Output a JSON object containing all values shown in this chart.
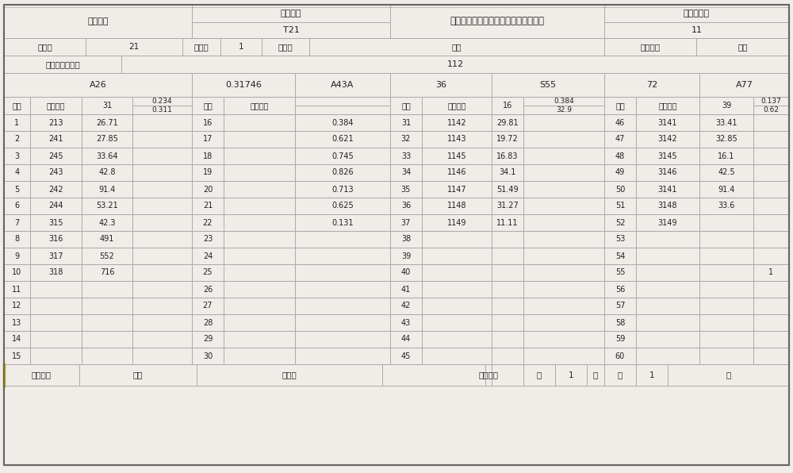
{
  "bg_color": "#f0ede8",
  "line_color": "#aaaaaa",
  "dark_line": "#666666",
  "text_color": "#222222",
  "title": "机械加工过程质量控制记录卡（表一）",
  "label_ceshijiange": "测试表格",
  "label_renwubianhao": "任务编号",
  "label_T21": "T21",
  "label_zhikongka": "质控卡编号",
  "label_11": "11",
  "label_xinghaol": "型号：",
  "label_21": "21",
  "label_tuhao": "图号：",
  "label_1": "1",
  "label_mingcheng": "名称：",
  "label_huakuai": "滑块",
  "label_celiangrenl": "测量人：",
  "label_dusa": "杜萨",
  "label_beice": "被测零件编号：",
  "label_112": "112",
  "grp_A26": "A26",
  "grp_031746": "0.31746",
  "grp_A43A": "A43A",
  "grp_36": "36",
  "grp_S55": "S55",
  "grp_72": "72",
  "grp_A77": "A77",
  "sh_xuhao": "序号",
  "sh_pinpian": "产品编号",
  "sh_31": "31",
  "sh_0234": "0.234",
  "sh_0311": "0.311",
  "sh_16": "16",
  "sh_0384": "0.384",
  "sh_329": "32.9",
  "sh_39": "39",
  "sh_0137": "0.137",
  "sh_062": "0.62",
  "data_rows": [
    [
      1,
      213,
      "26.71",
      "",
      16,
      "",
      "0.384",
      31,
      1142,
      "29.81",
      "",
      46,
      3141,
      "33.41",
      ""
    ],
    [
      2,
      241,
      "27.85",
      "",
      17,
      "",
      "0.621",
      32,
      1143,
      "19.72",
      "",
      47,
      3142,
      "32.85",
      ""
    ],
    [
      3,
      245,
      "33.64",
      "",
      18,
      "",
      "0.745",
      33,
      1145,
      "16.83",
      "",
      48,
      3145,
      "16.1",
      ""
    ],
    [
      4,
      243,
      "42.8",
      "",
      19,
      "",
      "0.826",
      34,
      1146,
      "34.1",
      "",
      49,
      3146,
      "42.5",
      ""
    ],
    [
      5,
      242,
      "91.4",
      "",
      20,
      "",
      "0.713",
      35,
      1147,
      "51.49",
      "",
      50,
      3141,
      "91.4",
      ""
    ],
    [
      6,
      244,
      "53.21",
      "",
      21,
      "",
      "0.625",
      36,
      1148,
      "31.27",
      "",
      51,
      3148,
      "33.6",
      ""
    ],
    [
      7,
      315,
      "42.3",
      "",
      22,
      "",
      "0.131",
      37,
      1149,
      "11.11",
      "",
      52,
      3149,
      "",
      ""
    ],
    [
      8,
      316,
      "491",
      "",
      23,
      "",
      "",
      38,
      "",
      "",
      "",
      53,
      "",
      "",
      ""
    ],
    [
      9,
      317,
      "552",
      "",
      24,
      "",
      "",
      39,
      "",
      "",
      "",
      54,
      "",
      "",
      ""
    ],
    [
      10,
      318,
      "716",
      "",
      25,
      "",
      "",
      40,
      "",
      "",
      "",
      55,
      "",
      "",
      "1"
    ],
    [
      11,
      "",
      "",
      "",
      26,
      "",
      "",
      41,
      "",
      "",
      "",
      56,
      "",
      "",
      ""
    ],
    [
      12,
      "",
      "",
      "",
      27,
      "",
      "",
      42,
      "",
      "",
      "",
      57,
      "",
      "",
      ""
    ],
    [
      13,
      "",
      "",
      "",
      28,
      "",
      "",
      43,
      "",
      "",
      "",
      58,
      "",
      "",
      ""
    ],
    [
      14,
      "",
      "",
      "",
      29,
      "",
      "",
      44,
      "",
      "",
      "",
      59,
      "",
      "",
      ""
    ],
    [
      15,
      "",
      "",
      "",
      30,
      "",
      "",
      45,
      "",
      "",
      "",
      60,
      "",
      "",
      ""
    ]
  ],
  "ft_czz": "操作者：",
  "ft_safeng": "萨芬",
  "ft_jianyan": "检验：",
  "ft_jundaibiao": "军代表：",
  "ft_di": "第",
  "ft_1": "1",
  "ft_ye": "页",
  "ft_gong": "共",
  "ft_1b": "1"
}
